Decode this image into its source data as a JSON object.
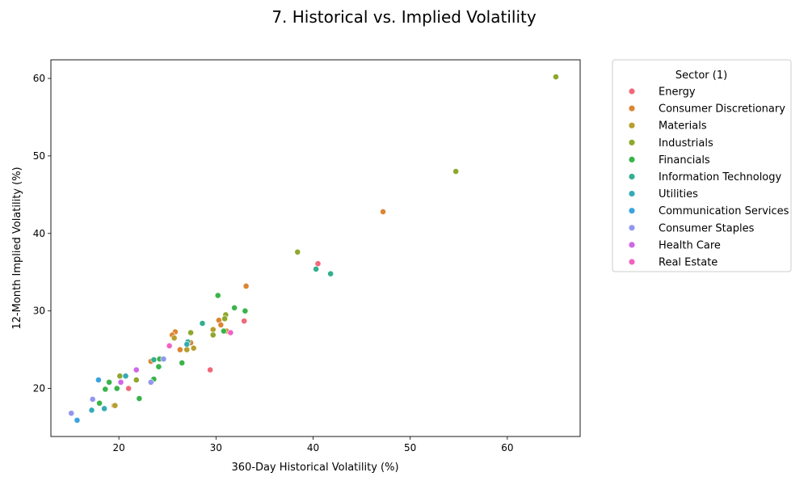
{
  "chart_data": {
    "type": "scatter",
    "title": "7. Historical vs. Implied Volatility",
    "xlabel": "360-Day Historical Volatility (%)",
    "ylabel": "12-Month Implied Volatility (%)",
    "xlim": [
      13.0,
      67.5
    ],
    "ylim": [
      13.8,
      62.4
    ],
    "xticks": [
      20,
      30,
      40,
      50,
      60
    ],
    "yticks": [
      20,
      30,
      40,
      50,
      60
    ],
    "grid": false,
    "legend": {
      "title": "Sector (1)",
      "placement": "outside-right"
    },
    "series": [
      {
        "name": "Energy",
        "color": "#f0697a",
        "points": [
          [
            40.5,
            36.1
          ],
          [
            32.9,
            28.7
          ],
          [
            29.4,
            22.4
          ],
          [
            21.0,
            20.0
          ]
        ]
      },
      {
        "name": "Consumer Discretionary",
        "color": "#dc8532",
        "points": [
          [
            47.2,
            42.8
          ],
          [
            33.1,
            33.2
          ],
          [
            30.3,
            28.8
          ],
          [
            30.5,
            28.2
          ],
          [
            31.1,
            27.4
          ],
          [
            25.8,
            27.3
          ],
          [
            25.5,
            26.9
          ],
          [
            27.4,
            25.9
          ],
          [
            26.3,
            25.0
          ],
          [
            23.3,
            23.5
          ],
          [
            19.5,
            17.8
          ]
        ]
      },
      {
        "name": "Materials",
        "color": "#b69e2f",
        "points": [
          [
            29.7,
            27.6
          ],
          [
            27.7,
            25.2
          ],
          [
            27.0,
            25.0
          ],
          [
            25.7,
            26.5
          ],
          [
            19.6,
            17.8
          ]
        ]
      },
      {
        "name": "Industrials",
        "color": "#8ea72d",
        "points": [
          [
            65.0,
            60.2
          ],
          [
            54.7,
            48.0
          ],
          [
            38.4,
            37.6
          ],
          [
            31.0,
            29.5
          ],
          [
            30.9,
            29.0
          ],
          [
            27.4,
            27.2
          ],
          [
            29.7,
            26.9
          ],
          [
            20.1,
            21.6
          ],
          [
            21.8,
            21.1
          ]
        ]
      },
      {
        "name": "Financials",
        "color": "#39b44a",
        "points": [
          [
            30.2,
            32.0
          ],
          [
            31.9,
            30.4
          ],
          [
            33.0,
            30.0
          ],
          [
            30.8,
            27.4
          ],
          [
            24.2,
            23.8
          ],
          [
            26.5,
            23.3
          ],
          [
            24.1,
            22.8
          ],
          [
            23.6,
            21.2
          ],
          [
            19.0,
            20.8
          ],
          [
            19.8,
            20.0
          ],
          [
            18.6,
            19.9
          ],
          [
            22.1,
            18.7
          ],
          [
            18.0,
            18.1
          ]
        ]
      },
      {
        "name": "Information Technology",
        "color": "#31af8f",
        "points": [
          [
            41.8,
            34.8
          ],
          [
            40.3,
            35.4
          ],
          [
            28.6,
            28.4
          ],
          [
            27.1,
            26.0
          ],
          [
            23.6,
            23.7
          ]
        ]
      },
      {
        "name": "Utilities",
        "color": "#36abb8",
        "points": [
          [
            27.0,
            25.7
          ],
          [
            20.7,
            21.6
          ],
          [
            18.5,
            17.4
          ],
          [
            17.2,
            17.2
          ]
        ]
      },
      {
        "name": "Communication Services",
        "color": "#3ba3e0",
        "points": [
          [
            17.9,
            21.1
          ],
          [
            15.7,
            15.9
          ]
        ]
      },
      {
        "name": "Consumer Staples",
        "color": "#9297ee",
        "points": [
          [
            24.6,
            23.8
          ],
          [
            23.3,
            20.8
          ],
          [
            17.3,
            18.6
          ],
          [
            15.1,
            16.8
          ]
        ]
      },
      {
        "name": "Health Care",
        "color": "#cf67e8",
        "points": [
          [
            21.8,
            22.4
          ],
          [
            20.2,
            20.8
          ]
        ]
      },
      {
        "name": "Real Estate",
        "color": "#f063c2",
        "points": [
          [
            31.5,
            27.2
          ],
          [
            25.2,
            25.5
          ]
        ]
      }
    ]
  }
}
